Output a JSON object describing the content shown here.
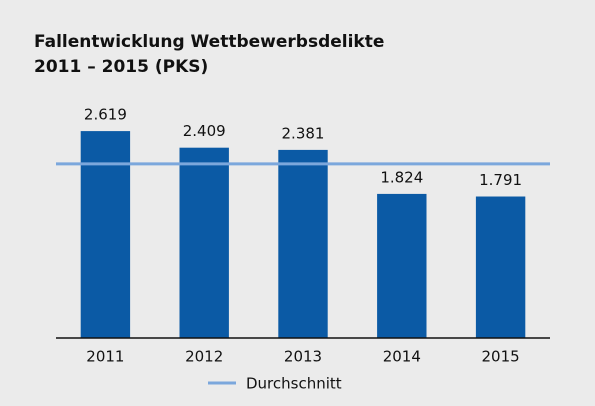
{
  "chart_data": {
    "type": "bar",
    "title": "Fallentwicklung Wettbewerbsdelikte",
    "subtitle": "2011 – 2015 (PKS)",
    "categories": [
      "2011",
      "2012",
      "2013",
      "2014",
      "2015"
    ],
    "values": [
      2619,
      2409,
      2381,
      1824,
      1791
    ],
    "value_labels": [
      "2.619",
      "2.409",
      "2.381",
      "1.824",
      "1.791"
    ],
    "color": "#0b5aa5",
    "ylim": [
      0,
      3000
    ],
    "average": {
      "name": "Durchschnitt",
      "value": 2204.8,
      "color": "#7ba7dc"
    }
  }
}
